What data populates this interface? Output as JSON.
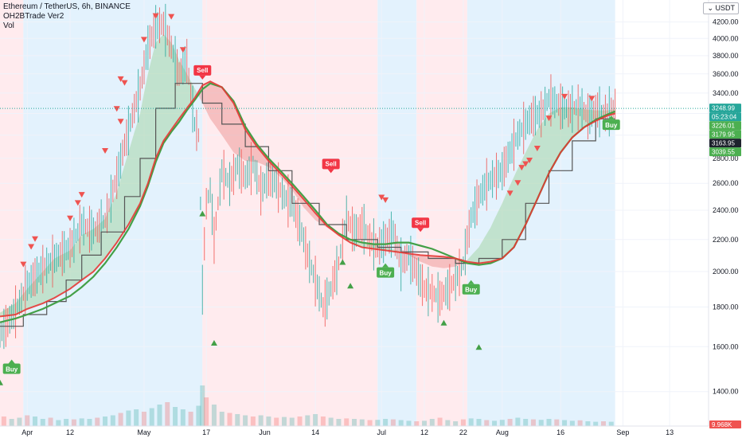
{
  "legend": {
    "symbol_line": "Ethereum / TetherUS, 6h, BINANCE",
    "indicator": "OH2BTrade Ver2",
    "volume": "Vol"
  },
  "unit_badge": "USDT",
  "chart_data": {
    "type": "line",
    "title": "Ethereum / TetherUS, 6h, BINANCE",
    "xlabel": "",
    "ylabel": "",
    "ylim": [
      1300,
      4400
    ],
    "y_scale": "log",
    "x_range_days": [
      -7,
      175
    ],
    "x_ticks": [
      {
        "label": "Apr",
        "day": 0
      },
      {
        "label": "12",
        "day": 11
      },
      {
        "label": "May",
        "day": 30
      },
      {
        "label": "17",
        "day": 46
      },
      {
        "label": "Jun",
        "day": 61
      },
      {
        "label": "14",
        "day": 74
      },
      {
        "label": "Jul",
        "day": 91
      },
      {
        "label": "12",
        "day": 102
      },
      {
        "label": "22",
        "day": 112
      },
      {
        "label": "Aug",
        "day": 122
      },
      {
        "label": "16",
        "day": 137
      },
      {
        "label": "Sep",
        "day": 153
      },
      {
        "label": "13",
        "day": 165
      }
    ],
    "y_ticks": [
      1400,
      1600,
      1800,
      2000,
      2200,
      2400,
      2600,
      2800,
      3000,
      3200,
      3400,
      3600,
      3800,
      4000,
      4200
    ],
    "last_day": 151,
    "price": {
      "days": [
        -7,
        -3,
        0,
        4,
        7,
        11,
        14,
        17,
        20,
        23,
        26,
        29,
        31,
        33,
        35,
        37,
        39,
        41,
        42,
        43,
        44,
        45,
        46,
        47,
        48,
        50,
        52,
        54,
        56,
        58,
        60,
        62,
        64,
        66,
        68,
        70,
        72,
        74,
        76,
        78,
        80,
        82,
        84,
        86,
        88,
        90,
        92,
        94,
        96,
        98,
        100,
        102,
        104,
        106,
        108,
        110,
        112,
        114,
        116,
        118,
        120,
        122,
        124,
        126,
        128,
        130,
        132,
        134,
        136,
        138,
        140,
        142,
        144,
        146,
        148,
        150,
        151
      ],
      "values": [
        1660,
        1780,
        1920,
        2020,
        2080,
        2150,
        2300,
        2260,
        2330,
        2650,
        3050,
        3450,
        3900,
        4150,
        4180,
        3900,
        3600,
        3750,
        3400,
        3100,
        3000,
        1900,
        2450,
        2550,
        2200,
        2700,
        2600,
        2750,
        2650,
        2750,
        2550,
        2650,
        2600,
        2500,
        2450,
        2300,
        2100,
        1950,
        1800,
        1900,
        2050,
        2350,
        2250,
        2300,
        2200,
        2150,
        2200,
        2250,
        2050,
        2100,
        2000,
        1900,
        1880,
        1850,
        1900,
        1950,
        2050,
        2350,
        2500,
        2600,
        2650,
        2700,
        2850,
        3000,
        3100,
        3180,
        3200,
        3350,
        3300,
        3250,
        3250,
        3270,
        3180,
        3250,
        3200,
        3240,
        3249
      ]
    },
    "channel_upper": {
      "days": [
        -7,
        -3,
        0,
        4,
        7,
        11,
        14,
        17,
        20,
        23,
        26,
        29,
        31,
        33,
        35,
        37,
        39,
        41,
        43,
        45,
        47,
        50,
        53,
        56,
        59,
        62,
        65,
        68,
        71,
        74,
        77,
        80,
        83,
        86,
        89,
        92,
        95,
        98,
        101,
        104,
        107,
        110,
        113,
        116,
        119,
        122,
        125,
        128,
        131,
        134,
        137,
        140,
        143,
        146,
        149,
        151
      ],
      "values": [
        1770,
        1820,
        1900,
        2000,
        2080,
        2130,
        2230,
        2270,
        2340,
        2530,
        2850,
        3200,
        3600,
        3950,
        4050,
        3950,
        3750,
        3600,
        3450,
        3300,
        3150,
        3000,
        2850,
        2780,
        2770,
        2730,
        2650,
        2550,
        2420,
        2330,
        2280,
        2230,
        2200,
        2180,
        2170,
        2150,
        2130,
        2100,
        2060,
        2030,
        2020,
        2030,
        2070,
        2150,
        2280,
        2450,
        2650,
        2850,
        3050,
        3200,
        3260,
        3260,
        3240,
        3230,
        3230,
        3240
      ]
    },
    "trend_line": {
      "days": [
        -7,
        -3,
        0,
        4,
        7,
        11,
        14,
        17,
        20,
        23,
        26,
        29,
        31,
        33,
        35,
        37,
        39,
        41,
        43,
        45,
        47,
        50,
        53,
        56,
        59,
        62,
        65,
        68,
        71,
        74,
        77,
        80,
        83,
        86,
        89,
        92,
        95,
        98,
        101,
        104,
        107,
        110,
        113,
        116,
        119,
        122,
        125,
        128,
        131,
        134,
        137,
        140,
        143,
        146,
        149,
        151
      ],
      "values": [
        1750,
        1760,
        1790,
        1820,
        1850,
        1900,
        1950,
        2000,
        2080,
        2180,
        2300,
        2450,
        2600,
        2800,
        2950,
        3050,
        3150,
        3250,
        3350,
        3480,
        3520,
        3460,
        3300,
        3050,
        2900,
        2780,
        2680,
        2580,
        2480,
        2380,
        2290,
        2230,
        2180,
        2150,
        2140,
        2130,
        2120,
        2110,
        2100,
        2095,
        2090,
        2080,
        2060,
        2050,
        2060,
        2080,
        2150,
        2300,
        2480,
        2680,
        2850,
        2980,
        3070,
        3130,
        3180,
        3200
      ]
    },
    "green_line": {
      "days": [
        -7,
        -3,
        0,
        4,
        7,
        11,
        14,
        17,
        20,
        23,
        26,
        29,
        31,
        33,
        35,
        37,
        39,
        41,
        43,
        45,
        47,
        50,
        53,
        56,
        59,
        62,
        65,
        68,
        71,
        74,
        77,
        80,
        83,
        86,
        89,
        92,
        95,
        98,
        101,
        104,
        107,
        110,
        113,
        116,
        119,
        122,
        125,
        128,
        131,
        134,
        137,
        140,
        143,
        146,
        149,
        151
      ],
      "values": [
        1720,
        1740,
        1760,
        1790,
        1820,
        1860,
        1910,
        1970,
        2050,
        2150,
        2270,
        2430,
        2580,
        2770,
        2930,
        3030,
        3120,
        3230,
        3330,
        3440,
        3500,
        3460,
        3320,
        3080,
        2920,
        2800,
        2700,
        2600,
        2500,
        2400,
        2300,
        2240,
        2200,
        2180,
        2170,
        2170,
        2180,
        2180,
        2160,
        2140,
        2110,
        2080,
        2050,
        2040,
        2050,
        2080,
        2150,
        2300,
        2480,
        2680,
        2850,
        2980,
        3070,
        3140,
        3190,
        3220
      ]
    },
    "stepped_line": {
      "days": [
        -7,
        -1,
        -1,
        5,
        5,
        10,
        10,
        14,
        14,
        19,
        19,
        25,
        25,
        29,
        29,
        33,
        33,
        38,
        38,
        45,
        45,
        50,
        50,
        56,
        56,
        62,
        62,
        68,
        68,
        75,
        75,
        82,
        82,
        90,
        90,
        96,
        96,
        103,
        103,
        110,
        110,
        116,
        116,
        122,
        122,
        128,
        128,
        134,
        134,
        140,
        140,
        146,
        146,
        151
      ],
      "values": [
        1700,
        1700,
        1760,
        1760,
        1830,
        1830,
        1950,
        1950,
        2100,
        2100,
        2250,
        2250,
        2500,
        2500,
        2800,
        2800,
        3250,
        3250,
        3500,
        3500,
        3300,
        3300,
        3100,
        3100,
        2900,
        2900,
        2700,
        2700,
        2450,
        2450,
        2300,
        2300,
        2200,
        2200,
        2150,
        2150,
        2120,
        2120,
        2080,
        2080,
        2050,
        2050,
        2080,
        2080,
        2200,
        2200,
        2450,
        2450,
        2700,
        2700,
        2950,
        2950,
        3150,
        3150
      ]
    },
    "volume": {
      "days": [
        -6,
        -4,
        -2,
        0,
        2,
        4,
        6,
        8,
        10,
        12,
        14,
        16,
        18,
        20,
        22,
        24,
        26,
        28,
        30,
        32,
        34,
        36,
        38,
        40,
        42,
        44,
        45,
        46,
        48,
        50,
        52,
        54,
        56,
        58,
        60,
        62,
        64,
        66,
        68,
        70,
        72,
        74,
        76,
        78,
        80,
        82,
        84,
        86,
        88,
        90,
        92,
        94,
        96,
        98,
        100,
        102,
        104,
        106,
        108,
        110,
        112,
        114,
        116,
        118,
        120,
        122,
        124,
        126,
        128,
        130,
        132,
        134,
        136,
        138,
        140,
        142,
        144,
        146,
        148,
        150
      ],
      "values": [
        40,
        30,
        35,
        45,
        40,
        30,
        35,
        25,
        30,
        28,
        32,
        30,
        35,
        40,
        45,
        55,
        65,
        70,
        60,
        75,
        90,
        100,
        80,
        70,
        60,
        85,
        170,
        120,
        90,
        60,
        55,
        50,
        45,
        40,
        45,
        40,
        35,
        38,
        35,
        40,
        45,
        50,
        40,
        35,
        30,
        32,
        30,
        28,
        25,
        26,
        30,
        28,
        25,
        22,
        20,
        22,
        30,
        35,
        25,
        20,
        28,
        32,
        30,
        25,
        22,
        26,
        30,
        35,
        30,
        28,
        26,
        30,
        28,
        25,
        22,
        24,
        20,
        18,
        20,
        18
      ],
      "ylim": [
        0,
        200
      ]
    },
    "regimes": [
      {
        "from": -7,
        "to": -1,
        "state": "bear"
      },
      {
        "from": -1,
        "to": 45,
        "state": "bull"
      },
      {
        "from": 45,
        "to": 90,
        "state": "bear"
      },
      {
        "from": 90,
        "to": 100,
        "state": "bull"
      },
      {
        "from": 100,
        "to": 113,
        "state": "bear"
      },
      {
        "from": 113,
        "to": 151,
        "state": "bull"
      }
    ],
    "signals": [
      {
        "day": 45,
        "price": 3540,
        "type": "Sell"
      },
      {
        "day": 78,
        "price": 2680,
        "type": "Sell"
      },
      {
        "day": 101,
        "price": 2250,
        "type": "Sell"
      },
      {
        "day": -4,
        "price": 1540,
        "type": "Buy"
      },
      {
        "day": 92,
        "price": 2050,
        "type": "Buy"
      },
      {
        "day": 114,
        "price": 1950,
        "type": "Buy"
      },
      {
        "day": 150,
        "price": 3180,
        "type": "Buy"
      }
    ],
    "down_arrows": [
      {
        "day": 33,
        "price": 4270
      },
      {
        "day": 37,
        "price": 4260
      },
      {
        "day": 30,
        "price": 3980
      },
      {
        "day": 40,
        "price": 3860
      },
      {
        "day": 24,
        "price": 3540
      },
      {
        "day": 25,
        "price": 3500
      },
      {
        "day": 23,
        "price": 3240
      },
      {
        "day": 24,
        "price": 3120
      },
      {
        "day": 20,
        "price": 2860
      },
      {
        "day": 14,
        "price": 2510
      },
      {
        "day": 13,
        "price": 2450
      },
      {
        "day": 11,
        "price": 2340
      },
      {
        "day": 2,
        "price": 2200
      },
      {
        "day": 1,
        "price": 2150
      },
      {
        "day": -1,
        "price": 2040
      },
      {
        "day": 91,
        "price": 2490
      },
      {
        "day": 92,
        "price": 2470
      },
      {
        "day": 124,
        "price": 2520
      },
      {
        "day": 126,
        "price": 2600
      },
      {
        "day": 127,
        "price": 2720
      },
      {
        "day": 128,
        "price": 2750
      },
      {
        "day": 129,
        "price": 2780
      },
      {
        "day": 131,
        "price": 2880
      },
      {
        "day": 134,
        "price": 3150
      },
      {
        "day": 138,
        "price": 3360
      },
      {
        "day": 145,
        "price": 3340
      }
    ],
    "up_arrows": [
      {
        "day": -7,
        "price": 1440
      },
      {
        "day": 45,
        "price": 2380
      },
      {
        "day": 48,
        "price": 1620
      },
      {
        "day": 81,
        "price": 2060
      },
      {
        "day": 83,
        "price": 1920
      },
      {
        "day": 107,
        "price": 1720
      },
      {
        "day": 116,
        "price": 1600
      }
    ],
    "price_tags": [
      {
        "label": "3248.99",
        "value": 3249,
        "color": "#26a69a"
      },
      {
        "label": "05:23:04",
        "value": 3249,
        "color": "#26a69a",
        "offset": 1
      },
      {
        "label": "3226.01",
        "value": 3226,
        "color": "#4caf50"
      },
      {
        "label": "3179.95",
        "value": 3180,
        "color": "#4caf50"
      },
      {
        "label": "3163.95",
        "value": 3164,
        "color": "#1e222d"
      },
      {
        "label": "3039.55",
        "value": 3040,
        "color": "#4caf50"
      }
    ],
    "volume_tag": {
      "label": "9.968K",
      "color": "#ef5350"
    }
  },
  "colors": {
    "bull_bg": "#e3f2fd",
    "bear_bg": "#ffebee",
    "up": "#26a69a",
    "down": "#ef5350",
    "trend": "#e53935",
    "green_line": "#43a047",
    "stepped": "#555555",
    "bull_fill": "#a5d6a7",
    "bear_fill": "#ef9a9a"
  }
}
